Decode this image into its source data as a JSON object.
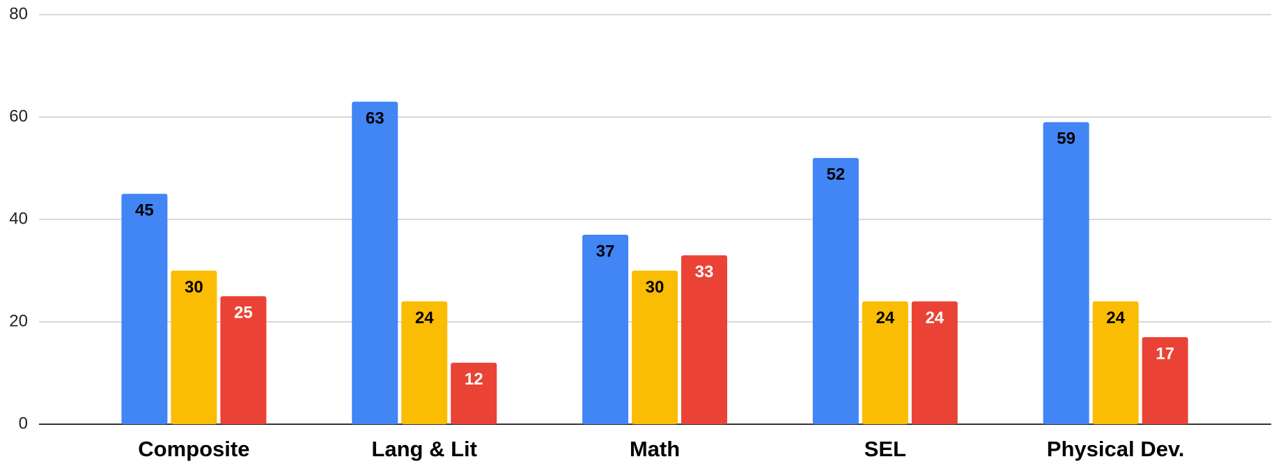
{
  "chart_data": {
    "type": "bar",
    "categories": [
      "Composite",
      "Lang & Lit",
      "Math",
      "SEL",
      "Physical Dev."
    ],
    "series": [
      {
        "color": "#4285f4",
        "label_color": "#000000",
        "values": [
          45,
          63,
          37,
          52,
          59
        ]
      },
      {
        "color": "#fbbc04",
        "label_color": "#000000",
        "values": [
          30,
          24,
          30,
          24,
          24
        ]
      },
      {
        "color": "#ea4335",
        "label_color": "#ffffff",
        "values": [
          25,
          12,
          33,
          24,
          17
        ]
      }
    ],
    "ylim": [
      0,
      80
    ],
    "yticks": [
      0,
      20,
      40,
      60,
      80
    ],
    "grid": true,
    "data_labels": true
  }
}
